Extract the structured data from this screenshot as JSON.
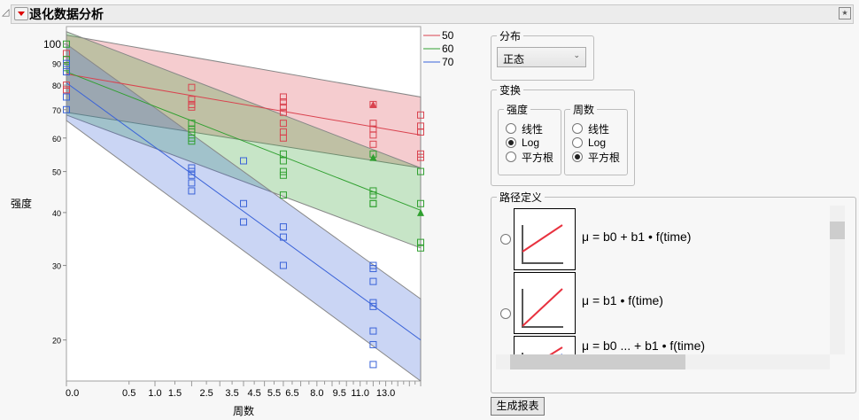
{
  "header": {
    "title": "退化数据分析"
  },
  "chart_data": {
    "type": "scatter",
    "xlabel": "周数",
    "ylabel": "强度",
    "x_scale": "sqrt",
    "y_scale": "log",
    "xlim": [
      0,
      16
    ],
    "ylim": [
      16,
      110
    ],
    "x_ticks": [
      "0.0",
      "0.5",
      "1.0",
      "1.5",
      "2.5",
      "3.5",
      "4.5",
      "5.5",
      "6.5",
      "8.0",
      "9.5",
      "11.0",
      "13.0"
    ],
    "y_ticks": [
      "100",
      "90",
      "80",
      "70",
      "60",
      "50",
      "40",
      "30",
      "20"
    ],
    "legend_position": "right-top",
    "series": [
      {
        "name": "50",
        "color": "#d9434f",
        "fit": [
          [
            0,
            85
          ],
          [
            16,
            61
          ]
        ],
        "band_upper": [
          [
            0,
            105
          ],
          [
            16,
            75
          ]
        ],
        "band_lower": [
          [
            0,
            69
          ],
          [
            16,
            51
          ]
        ],
        "points": [
          [
            0,
            95
          ],
          [
            0,
            92
          ],
          [
            0,
            80
          ],
          [
            0,
            78
          ],
          [
            2,
            79
          ],
          [
            2,
            74
          ],
          [
            2,
            72
          ],
          [
            2,
            71
          ],
          [
            6,
            75
          ],
          [
            6,
            73
          ],
          [
            6,
            71
          ],
          [
            6,
            69
          ],
          [
            6,
            65
          ],
          [
            6,
            62
          ],
          [
            6,
            60
          ],
          [
            12,
            72
          ],
          [
            12,
            65
          ],
          [
            12,
            63
          ],
          [
            12,
            61
          ],
          [
            12,
            58
          ],
          [
            16,
            68
          ],
          [
            16,
            64
          ],
          [
            16,
            62
          ],
          [
            16,
            55
          ],
          [
            16,
            54
          ]
        ],
        "means": [
          [
            12,
            72
          ]
        ]
      },
      {
        "name": "60",
        "color": "#30a030",
        "fit": [
          [
            0,
            86
          ],
          [
            16,
            40.5
          ]
        ],
        "band_upper": [
          [
            0,
            107
          ],
          [
            16,
            51
          ]
        ],
        "band_lower": [
          [
            0,
            68
          ],
          [
            16,
            33
          ]
        ],
        "points": [
          [
            0,
            100
          ],
          [
            0,
            92
          ],
          [
            0,
            88
          ],
          [
            2,
            65
          ],
          [
            2,
            63
          ],
          [
            2,
            62
          ],
          [
            2,
            60
          ],
          [
            2,
            59
          ],
          [
            6,
            55
          ],
          [
            6,
            53
          ],
          [
            6,
            50
          ],
          [
            6,
            49
          ],
          [
            6,
            44
          ],
          [
            12,
            55
          ],
          [
            12,
            45
          ],
          [
            12,
            44
          ],
          [
            12,
            42
          ],
          [
            12,
            42
          ],
          [
            16,
            50
          ],
          [
            16,
            42
          ],
          [
            16,
            34
          ],
          [
            16,
            33
          ]
        ],
        "means": [
          [
            12,
            54
          ],
          [
            16,
            40
          ]
        ]
      },
      {
        "name": "70",
        "color": "#3a63d8",
        "fit": [
          [
            0,
            81
          ],
          [
            16,
            20
          ]
        ],
        "band_upper": [
          [
            0,
            100
          ],
          [
            16,
            25
          ]
        ],
        "band_lower": [
          [
            0,
            66
          ],
          [
            16,
            16
          ]
        ],
        "points": [
          [
            0,
            90
          ],
          [
            0,
            86
          ],
          [
            0,
            75
          ],
          [
            0,
            70
          ],
          [
            2,
            51
          ],
          [
            2,
            50
          ],
          [
            2,
            49
          ],
          [
            2,
            47
          ],
          [
            2,
            45
          ],
          [
            4,
            53
          ],
          [
            4,
            42
          ],
          [
            4,
            38
          ],
          [
            4,
            38
          ],
          [
            6,
            37
          ],
          [
            6,
            35
          ],
          [
            6,
            30
          ],
          [
            12,
            30
          ],
          [
            12,
            29.5
          ],
          [
            12,
            27.5
          ],
          [
            12,
            24.5
          ],
          [
            12,
            24
          ],
          [
            12,
            21
          ],
          [
            12,
            19.5
          ],
          [
            12,
            17.5
          ]
        ],
        "means": []
      }
    ]
  },
  "panel": {
    "distribution": {
      "label": "分布",
      "selected": "正态"
    },
    "transform": {
      "label": "变换",
      "strength": {
        "label": "强度",
        "options": [
          "线性",
          "Log",
          "平方根"
        ],
        "selected": 1
      },
      "weeks": {
        "label": "周数",
        "options": [
          "线性",
          "Log",
          "平方根"
        ],
        "selected": 2
      }
    },
    "path": {
      "label": "路径定义",
      "formulas": [
        "μ = b0 + b1 • f(time)",
        "μ = b1 • f(time)",
        "μ = b0 ... + b1 • f(time)"
      ]
    },
    "generate_label": "生成报表"
  }
}
